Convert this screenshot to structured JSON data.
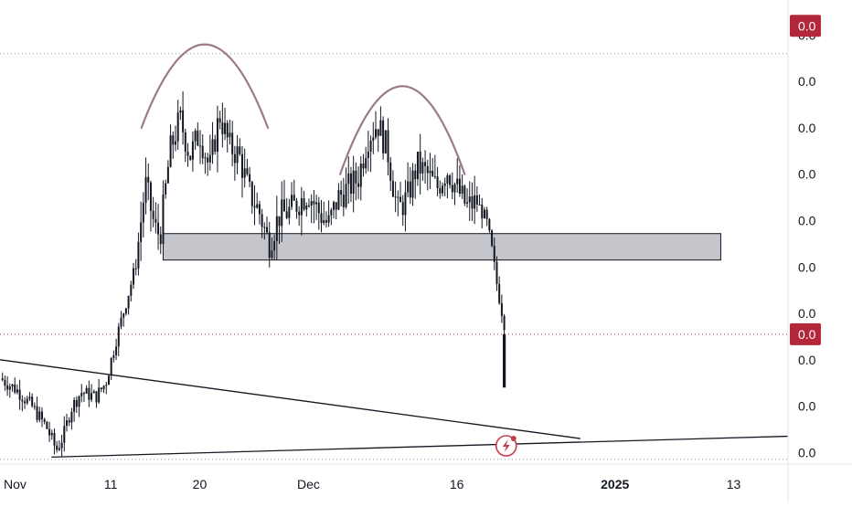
{
  "chart_data": {
    "type": "candlestick",
    "title": "",
    "symbol_pattern": "double-top",
    "x_ticks": [
      {
        "label": "Nov",
        "day": 0,
        "bold": false
      },
      {
        "label": "11",
        "day": 10,
        "bold": false
      },
      {
        "label": "20",
        "day": 19,
        "bold": false
      },
      {
        "label": "Dec",
        "day": 30,
        "bold": false
      },
      {
        "label": "16",
        "day": 45,
        "bold": false
      },
      {
        "label": "2025",
        "day": 61,
        "bold": true
      },
      {
        "label": "13",
        "day": 73,
        "bold": false
      }
    ],
    "y_ticks": [
      {
        "label": "0.0",
        "value": 10.0
      },
      {
        "label": "0.0",
        "value": 9.0
      },
      {
        "label": "0.0",
        "value": 8.0
      },
      {
        "label": "0.0",
        "value": 7.0
      },
      {
        "label": "0.0",
        "value": 6.0
      },
      {
        "label": "0.0",
        "value": 5.0
      },
      {
        "label": "0.0",
        "value": 4.0
      },
      {
        "label": "0.0",
        "value": 3.0
      },
      {
        "label": "0.0",
        "value": 2.0
      },
      {
        "label": "0.0",
        "value": 1.0
      }
    ],
    "ylim": [
      0.75,
      10.6
    ],
    "xlim": [
      -1.2,
      78.5
    ],
    "price_labels": {
      "top": {
        "label": "0.0",
        "value": 10.2,
        "color": "#b2283a"
      },
      "current": {
        "label": "0.0",
        "value": 3.55,
        "color": "#b2283a"
      },
      "next": {
        "label": "0.0",
        "value": 3.0,
        "color": "#ffffff"
      }
    },
    "dotted_levels": [
      9.6,
      3.55,
      0.85
    ],
    "series": [
      {
        "type": "candle",
        "control_points": [
          [
            -1.2,
            2.6
          ],
          [
            0.5,
            2.35
          ],
          [
            2,
            2.0
          ],
          [
            3.5,
            1.55
          ],
          [
            4.5,
            1.05
          ],
          [
            5.2,
            1.35
          ],
          [
            6,
            1.95
          ],
          [
            7,
            2.3
          ],
          [
            8.5,
            2.2
          ],
          [
            9.5,
            2.5
          ],
          [
            10.5,
            3.4
          ],
          [
            11.5,
            4.2
          ],
          [
            12.5,
            5.0
          ],
          [
            13.5,
            6.8
          ],
          [
            14.5,
            5.8
          ],
          [
            15,
            5.7
          ],
          [
            16,
            7.5
          ],
          [
            17,
            8.2
          ],
          [
            18,
            7.4
          ],
          [
            19,
            7.9
          ],
          [
            20,
            7.1
          ],
          [
            21,
            8.3
          ],
          [
            22,
            7.6
          ],
          [
            23,
            7.4
          ],
          [
            24,
            6.6
          ],
          [
            25,
            6.2
          ],
          [
            26,
            5.5
          ],
          [
            27,
            6.1
          ],
          [
            28,
            6.2
          ],
          [
            29,
            6.4
          ],
          [
            30,
            6.6
          ],
          [
            31,
            6.2
          ],
          [
            32,
            5.9
          ],
          [
            33,
            6.5
          ],
          [
            34,
            6.7
          ],
          [
            35,
            6.9
          ],
          [
            36,
            7.8
          ],
          [
            37,
            8.1
          ],
          [
            38,
            7.5
          ],
          [
            39,
            6.2
          ],
          [
            40,
            6.5
          ],
          [
            41,
            7.2
          ],
          [
            42,
            7.0
          ],
          [
            43,
            6.7
          ],
          [
            44,
            7.1
          ],
          [
            45,
            6.7
          ],
          [
            46,
            6.3
          ],
          [
            47,
            6.4
          ],
          [
            48,
            6.0
          ],
          [
            48.6,
            5.3
          ],
          [
            49,
            4.7
          ],
          [
            49.6,
            4.0
          ],
          [
            50,
            3.6
          ]
        ]
      },
      {
        "type": "trendline",
        "points": [
          [
            -1.2,
            3.0
          ],
          [
            57.5,
            1.3
          ]
        ]
      },
      {
        "type": "trendline",
        "points": [
          [
            4,
            0.9
          ],
          [
            78.5,
            1.35
          ]
        ]
      }
    ],
    "zones": [
      {
        "label": "support",
        "x": [
          15.3,
          71.7
        ],
        "y": [
          5.15,
          5.72
        ],
        "color": "#9598a1"
      }
    ],
    "arcs": [
      {
        "label": "head-left",
        "center_x": 19.5,
        "y_base": 8.0,
        "y_peak": 9.8,
        "half_width": 6.4
      },
      {
        "label": "head-right",
        "center_x": 39.5,
        "y_base": 7.0,
        "y_peak": 8.9,
        "half_width": 6.3
      }
    ],
    "drop_candle": {
      "day": 49.8,
      "open": 3.55,
      "close": 2.4
    },
    "event_icon": {
      "day": 50,
      "name": "lightning-icon"
    },
    "grid": false,
    "legend": "none"
  }
}
